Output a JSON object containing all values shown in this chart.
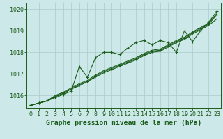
{
  "title": "Graphe pression niveau de la mer (hPa)",
  "bg_color": "#cce8e8",
  "grid_color": "#aacccc",
  "line_color": "#1a5c1a",
  "xlim": [
    -0.5,
    23.5
  ],
  "ylim": [
    1015.4,
    1020.3
  ],
  "yticks": [
    1016,
    1017,
    1018,
    1019,
    1020
  ],
  "xticks": [
    0,
    1,
    2,
    3,
    4,
    5,
    6,
    7,
    8,
    9,
    10,
    11,
    12,
    13,
    14,
    15,
    16,
    17,
    18,
    19,
    20,
    21,
    22,
    23
  ],
  "series": [
    [
      1015.55,
      1015.65,
      1015.75,
      1015.9,
      1016.05,
      1016.2,
      1017.35,
      1016.85,
      1017.75,
      1018.0,
      1018.0,
      1017.9,
      1018.2,
      1018.45,
      1018.55,
      1018.35,
      1018.55,
      1018.45,
      1018.0,
      1019.0,
      1018.5,
      1019.0,
      1019.4,
      1019.9
    ],
    [
      1015.55,
      1015.65,
      1015.75,
      1015.95,
      1016.1,
      1016.3,
      1016.5,
      1016.65,
      1016.9,
      1017.1,
      1017.25,
      1017.4,
      1017.55,
      1017.7,
      1017.9,
      1018.05,
      1018.1,
      1018.3,
      1018.5,
      1018.65,
      1018.9,
      1019.1,
      1019.3,
      1019.75
    ],
    [
      1015.55,
      1015.65,
      1015.75,
      1015.95,
      1016.1,
      1016.3,
      1016.45,
      1016.65,
      1016.85,
      1017.05,
      1017.2,
      1017.35,
      1017.5,
      1017.65,
      1017.85,
      1018.0,
      1018.05,
      1018.25,
      1018.45,
      1018.6,
      1018.85,
      1019.05,
      1019.25,
      1019.55
    ],
    [
      1015.55,
      1015.65,
      1015.75,
      1016.0,
      1016.15,
      1016.35,
      1016.55,
      1016.7,
      1016.95,
      1017.15,
      1017.3,
      1017.45,
      1017.6,
      1017.75,
      1017.95,
      1018.1,
      1018.15,
      1018.35,
      1018.55,
      1018.7,
      1018.95,
      1019.15,
      1019.35,
      1019.8
    ]
  ],
  "marker_series": [
    0,
    1
  ],
  "xlabel_fontsize": 7,
  "tick_fontsize": 6,
  "label_color": "#1a5c1a"
}
